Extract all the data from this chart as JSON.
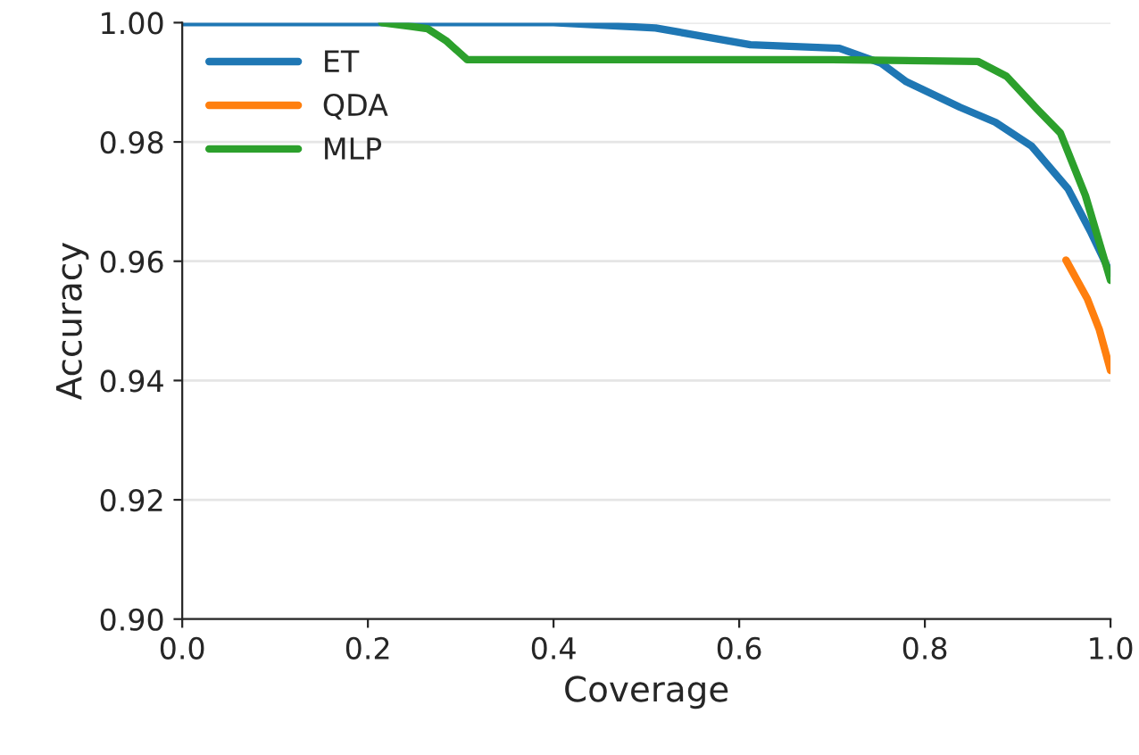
{
  "chart_data": {
    "type": "line",
    "xlabel": "Coverage",
    "ylabel": "Accuracy",
    "xlim": [
      0.0,
      1.0
    ],
    "xticks": [
      {
        "value": 0,
        "label": "0.0"
      },
      0.2,
      0.4,
      0.6,
      0.8,
      {
        "value": 1,
        "label": "1.0"
      }
    ],
    "ylim": [
      0.9,
      1.0
    ],
    "yticks": [
      {
        "value": 0.9,
        "label": "0.90"
      },
      0.92,
      0.94,
      0.96,
      0.98,
      {
        "value": 1.0,
        "label": "1.00"
      }
    ],
    "grid": "y",
    "legend": "top left",
    "series": [
      {
        "name": "ET",
        "color": "#1f77b4",
        "x": [
          0.0,
          0.2,
          0.4,
          0.51,
          0.612,
          0.708,
          0.753,
          0.78,
          0.838,
          0.876,
          0.915,
          0.954,
          0.979,
          0.998,
          1.0
        ],
        "values": [
          1.0,
          1.0,
          1.0,
          0.9991,
          0.9963,
          0.9957,
          0.9932,
          0.9901,
          0.9858,
          0.9833,
          0.9793,
          0.9722,
          0.9648,
          0.9586,
          0.958
        ]
      },
      {
        "name": "QDA",
        "color": "#ff7f0e",
        "x": [
          0.952,
          0.975,
          0.988,
          1.0
        ],
        "values": [
          0.9602,
          0.9537,
          0.9485,
          0.9417
        ]
      },
      {
        "name": "MLP",
        "color": "#2ca02c",
        "x": [
          0.215,
          0.245,
          0.264,
          0.284,
          0.307,
          0.5,
          0.7,
          0.857,
          0.888,
          0.921,
          0.946,
          0.973,
          1.0
        ],
        "values": [
          1.0,
          0.9994,
          0.999,
          0.997,
          0.9938,
          0.9938,
          0.9938,
          0.9935,
          0.991,
          0.9855,
          0.9815,
          0.971,
          0.9568
        ]
      }
    ]
  }
}
